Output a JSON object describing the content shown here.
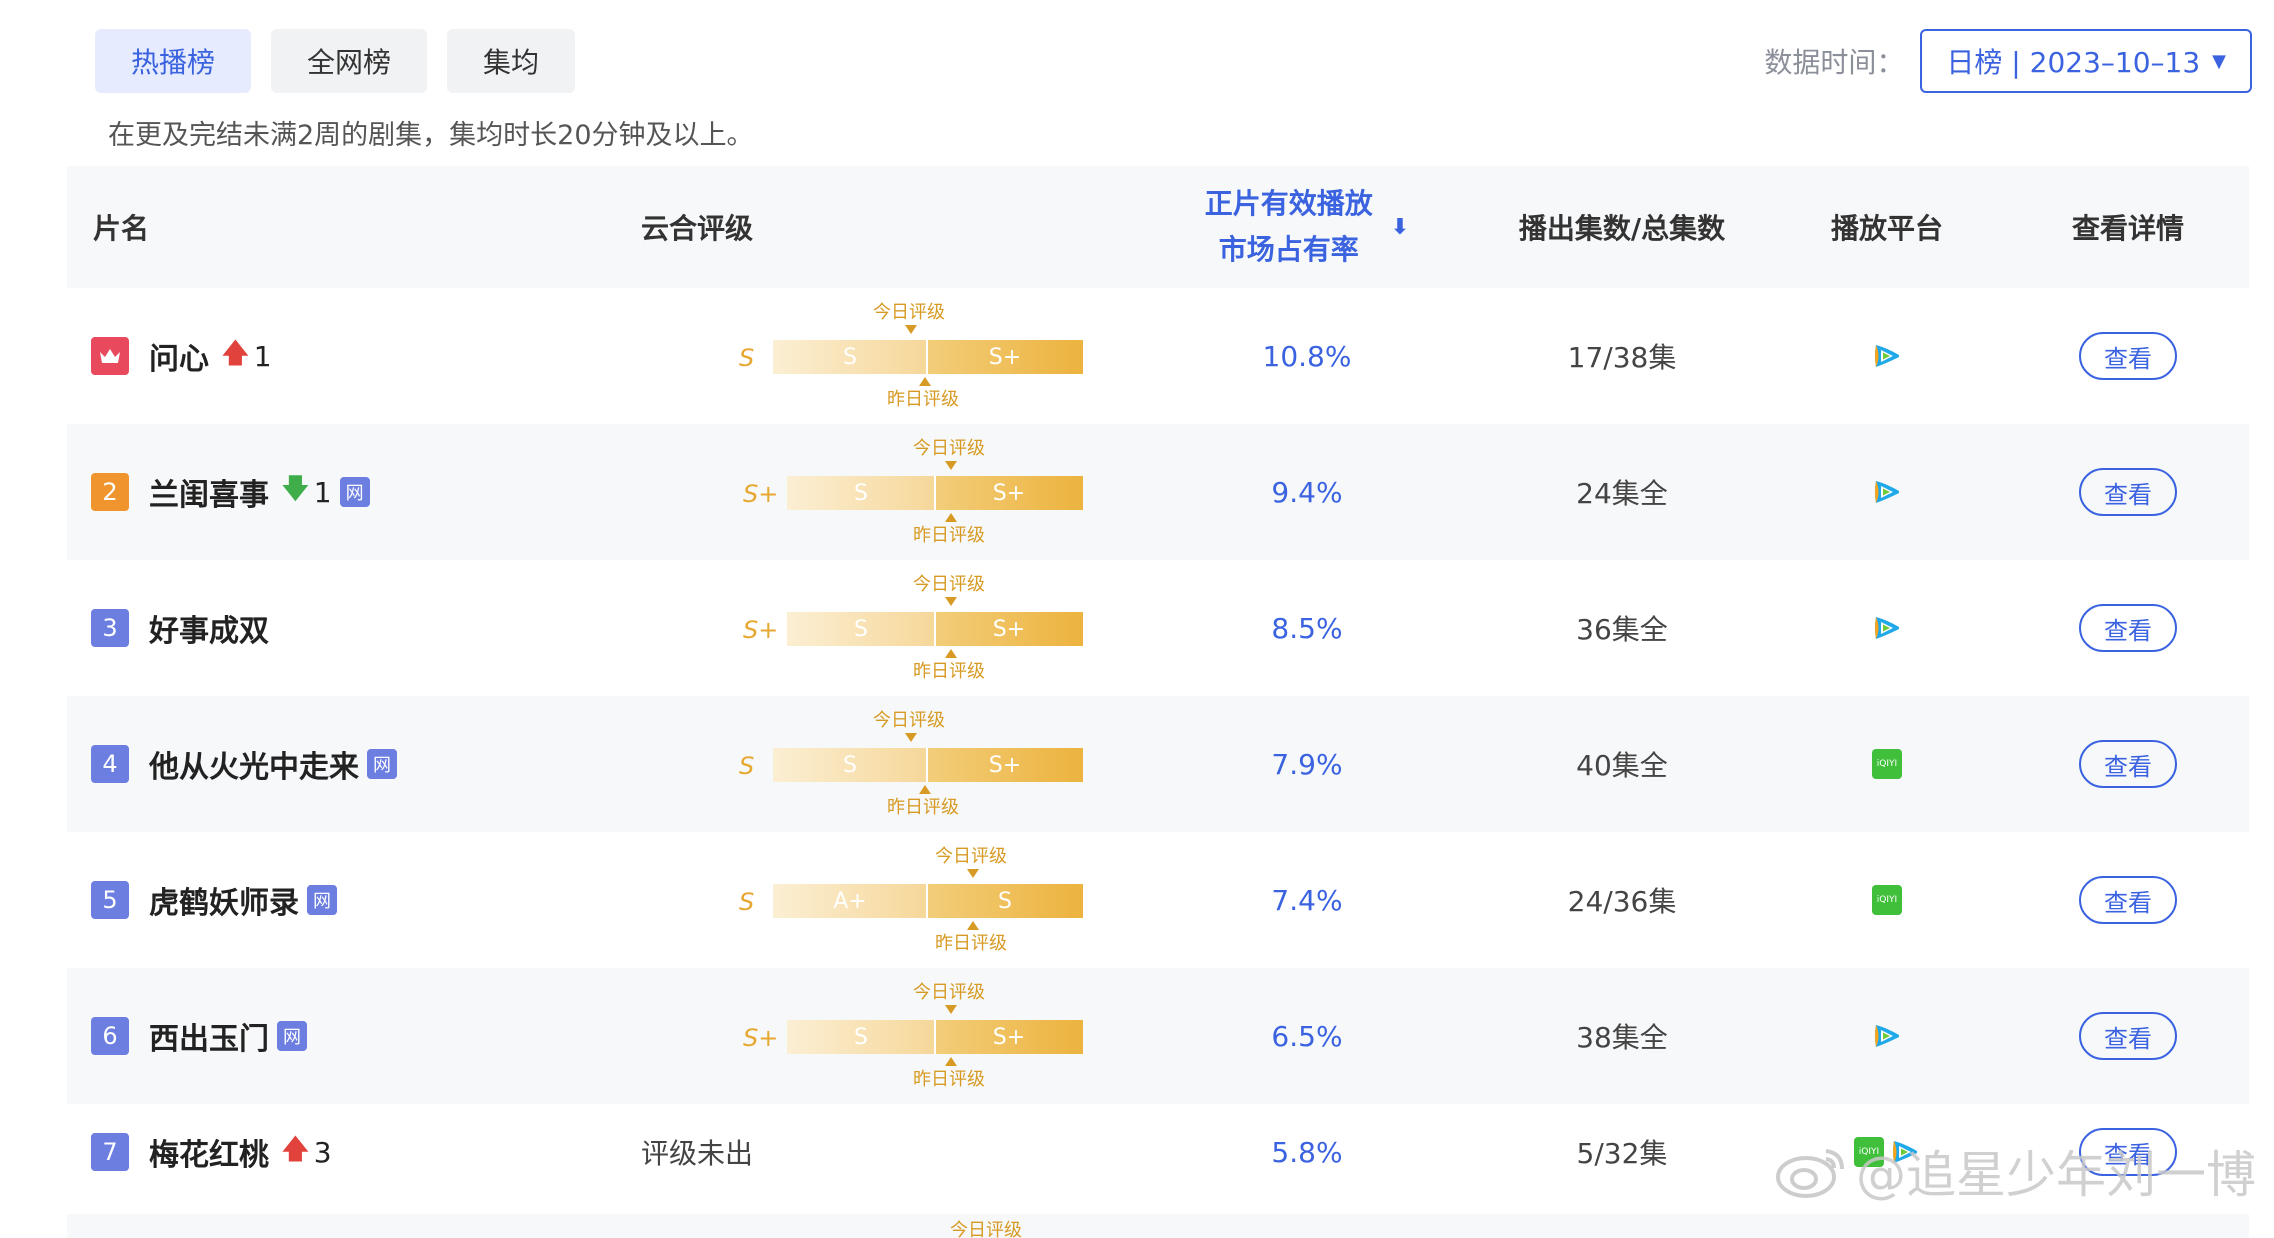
{
  "tabs": [
    {
      "label": "热播榜",
      "active": true
    },
    {
      "label": "全网榜",
      "active": false
    },
    {
      "label": "集均",
      "active": false
    }
  ],
  "data_time": {
    "label": "数据时间：",
    "value": "日榜 | 2023–10–13"
  },
  "note": "在更及完结未满2周的剧集，集均时长20分钟及以上。",
  "headers": {
    "name": "片名",
    "rating": "云合评级",
    "share_line1": "正片有效播放",
    "share_line2": "市场占有率",
    "episodes": "播出集数/总集数",
    "platform": "播放平台",
    "detail": "查看详情"
  },
  "rating_labels": {
    "today": "今日评级",
    "yesterday": "昨日评级"
  },
  "rows": [
    {
      "rank": "1",
      "title": "问心",
      "trend": "up",
      "trend_value": "1",
      "web": false,
      "grade": "S",
      "bar_left": "S",
      "bar_right": "S+",
      "share": "10.8%",
      "episodes": "17/38集",
      "platforms": [
        "tencent"
      ],
      "view": "查看"
    },
    {
      "rank": "2",
      "title": "兰闺喜事",
      "trend": "down",
      "trend_value": "1",
      "web": true,
      "grade": "S+",
      "bar_left": "S",
      "bar_right": "S+",
      "share": "9.4%",
      "episodes": "24集全",
      "platforms": [
        "tencent"
      ],
      "view": "查看"
    },
    {
      "rank": "3",
      "title": "好事成双",
      "trend": "",
      "trend_value": "",
      "web": false,
      "grade": "S+",
      "bar_left": "S",
      "bar_right": "S+",
      "share": "8.5%",
      "episodes": "36集全",
      "platforms": [
        "tencent"
      ],
      "view": "查看"
    },
    {
      "rank": "4",
      "title": "他从火光中走来",
      "trend": "",
      "trend_value": "",
      "web": true,
      "grade": "S",
      "bar_left": "S",
      "bar_right": "S+",
      "share": "7.9%",
      "episodes": "40集全",
      "platforms": [
        "iqiyi"
      ],
      "view": "查看"
    },
    {
      "rank": "5",
      "title": "虎鹤妖师录",
      "trend": "",
      "trend_value": "",
      "web": true,
      "grade": "S",
      "bar_left": "A+",
      "bar_right": "S",
      "share": "7.4%",
      "episodes": "24/36集",
      "platforms": [
        "iqiyi"
      ],
      "view": "查看"
    },
    {
      "rank": "6",
      "title": "西出玉门",
      "trend": "",
      "trend_value": "",
      "web": true,
      "grade": "S+",
      "bar_left": "S",
      "bar_right": "S+",
      "share": "6.5%",
      "episodes": "38集全",
      "platforms": [
        "tencent"
      ],
      "view": "查看"
    },
    {
      "rank": "7",
      "title": "梅花红桃",
      "trend": "up",
      "trend_value": "3",
      "web": false,
      "unrated": "评级未出",
      "share": "5.8%",
      "episodes": "5/32集",
      "platforms": [
        "iqiyi",
        "tencent"
      ],
      "view": "查看"
    }
  ],
  "web_badge": "网",
  "iqiyi_text": "iQIYI",
  "watermark": "@追星少年刘一博"
}
